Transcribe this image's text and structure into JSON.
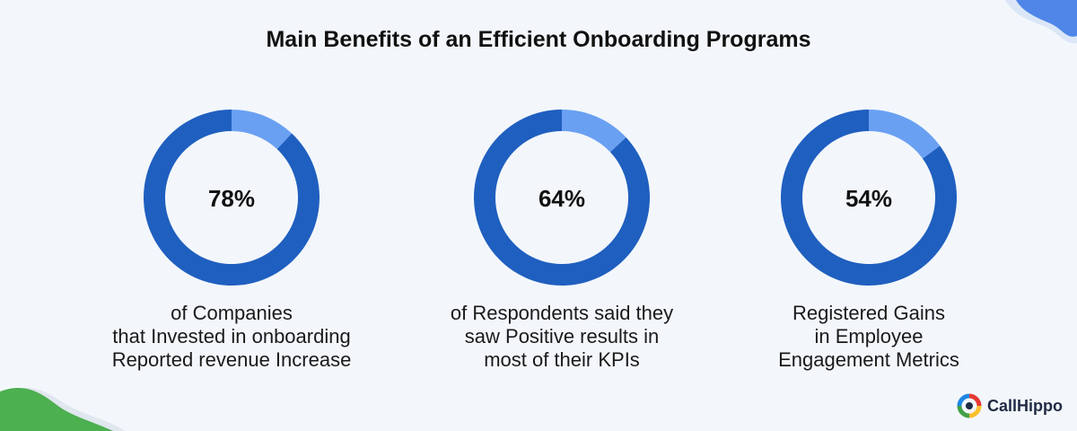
{
  "title": "Main Benefits of an Efficient Onboarding Programs",
  "colors": {
    "ring": "#1f5fbf",
    "accent": "#6aa0f2",
    "background": "#f3f7fc"
  },
  "chart_data": [
    {
      "type": "pie",
      "label": "78%",
      "value": 78,
      "highlight_fraction": 0.12,
      "caption": "of Companies\nthat Invested in onboarding\nReported revenue Increase"
    },
    {
      "type": "pie",
      "label": "64%",
      "value": 64,
      "highlight_fraction": 0.13,
      "caption": "of Respondents said they\nsaw Positive results in\nmost of their KPIs"
    },
    {
      "type": "pie",
      "label": "54%",
      "value": 54,
      "highlight_fraction": 0.15,
      "caption": "Registered Gains\nin Employee\nEngagement Metrics"
    }
  ],
  "brand": {
    "name": "CallHippo",
    "icon": "callhippo-logo-icon"
  }
}
